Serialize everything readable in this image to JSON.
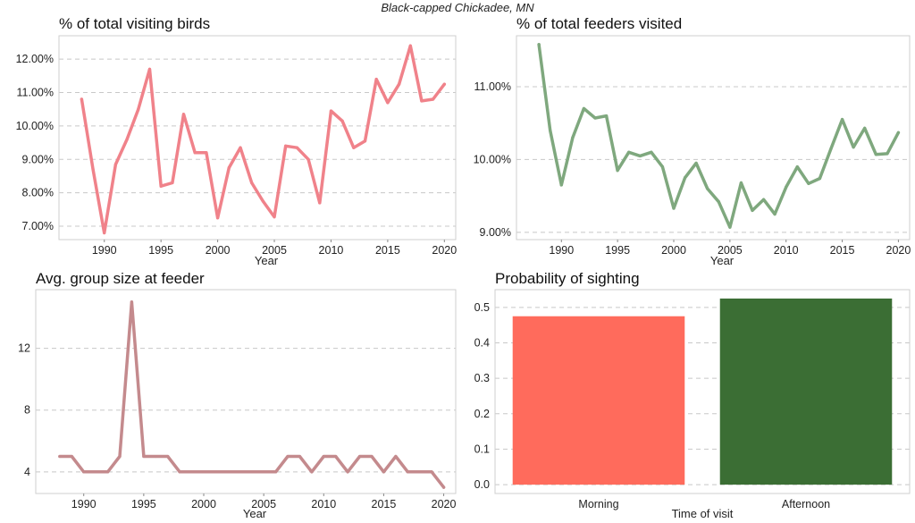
{
  "figure": {
    "suptitle": "Black-capped Chickadee, MN"
  },
  "colors": {
    "visiting": "#f0828a",
    "feeders": "#7fa87e",
    "group": "#c48a8d",
    "morning": "#ff6b5c",
    "afternoon": "#3b6e34"
  },
  "chart_data": [
    {
      "id": "visiting",
      "type": "line",
      "title": "% of total visiting birds",
      "xlabel": "Year",
      "ylabel": "",
      "xlim": [
        1986,
        2021
      ],
      "ylim": [
        6.6,
        12.7
      ],
      "xticks": [
        1990,
        1995,
        2000,
        2005,
        2010,
        2015,
        2020
      ],
      "yticks": [
        7,
        8,
        9,
        10,
        11,
        12
      ],
      "ytick_labels": [
        "7.00%",
        "8.00%",
        "9.00%",
        "10.00%",
        "11.00%",
        "12.00%"
      ],
      "grid": "horizontal-dashed",
      "color_key": "visiting",
      "x": [
        1988,
        1989,
        1990,
        1991,
        1992,
        1993,
        1994,
        1995,
        1996,
        1997,
        1998,
        1999,
        2000,
        2001,
        2002,
        2003,
        2004,
        2005,
        2006,
        2007,
        2008,
        2009,
        2010,
        2011,
        2012,
        2013,
        2014,
        2015,
        2016,
        2017,
        2018,
        2019,
        2020
      ],
      "y": [
        10.8,
        8.7,
        6.8,
        8.85,
        9.6,
        10.5,
        11.7,
        8.2,
        8.3,
        10.35,
        9.2,
        9.2,
        7.25,
        8.75,
        9.35,
        8.3,
        7.75,
        7.28,
        9.4,
        9.35,
        9.0,
        7.7,
        10.45,
        10.15,
        9.35,
        9.55,
        11.4,
        10.7,
        11.25,
        12.4,
        10.75,
        10.8,
        11.25
      ]
    },
    {
      "id": "feeders",
      "type": "line",
      "title": "% of total feeders visited",
      "xlabel": "Year",
      "ylabel": "",
      "xlim": [
        1986,
        2021
      ],
      "ylim": [
        8.9,
        11.7
      ],
      "xticks": [
        1990,
        1995,
        2000,
        2005,
        2010,
        2015,
        2020
      ],
      "yticks": [
        9,
        10,
        11
      ],
      "ytick_labels": [
        "9.00%",
        "10.00%",
        "11.00%"
      ],
      "grid": "horizontal-dashed",
      "color_key": "feeders",
      "x": [
        1988,
        1989,
        1990,
        1991,
        1992,
        1993,
        1994,
        1995,
        1996,
        1997,
        1998,
        1999,
        2000,
        2001,
        2002,
        2003,
        2004,
        2005,
        2006,
        2007,
        2008,
        2009,
        2010,
        2011,
        2012,
        2013,
        2014,
        2015,
        2016,
        2017,
        2018,
        2019,
        2020
      ],
      "y": [
        11.58,
        10.4,
        9.65,
        10.3,
        10.7,
        10.57,
        10.6,
        9.85,
        10.1,
        10.05,
        10.1,
        9.9,
        9.33,
        9.75,
        9.95,
        9.6,
        9.42,
        9.07,
        9.68,
        9.3,
        9.45,
        9.25,
        9.62,
        9.9,
        9.67,
        9.74,
        10.15,
        10.55,
        10.17,
        10.43,
        10.07,
        10.08,
        10.37
      ]
    },
    {
      "id": "group",
      "type": "line",
      "title": "Avg. group size at feeder",
      "xlabel": "Year",
      "ylabel": "",
      "xlim": [
        1986,
        2021
      ],
      "ylim": [
        2.6,
        15.8
      ],
      "xticks": [
        1990,
        1995,
        2000,
        2005,
        2010,
        2015,
        2020
      ],
      "yticks": [
        4,
        8,
        12
      ],
      "ytick_labels": [
        "4",
        "8",
        "12"
      ],
      "grid": "horizontal-dashed",
      "color_key": "group",
      "x": [
        1988,
        1989,
        1990,
        1991,
        1992,
        1993,
        1994,
        1995,
        1996,
        1997,
        1998,
        1999,
        2000,
        2001,
        2002,
        2003,
        2004,
        2005,
        2006,
        2007,
        2008,
        2009,
        2010,
        2011,
        2012,
        2013,
        2014,
        2015,
        2016,
        2017,
        2018,
        2019,
        2020
      ],
      "y": [
        5,
        5,
        4,
        4,
        4,
        5,
        15,
        5,
        5,
        5,
        4,
        4,
        4,
        4,
        4,
        4,
        4,
        4,
        4,
        5,
        5,
        4,
        5,
        5,
        4,
        5,
        5,
        4,
        5,
        4,
        4,
        4,
        3
      ]
    },
    {
      "id": "sighting",
      "type": "bar",
      "title": "Probability of sighting",
      "xlabel": "Time of visit",
      "ylabel": "",
      "categories": [
        "Morning",
        "Afternoon"
      ],
      "values": [
        0.475,
        0.525
      ],
      "ylim": [
        -0.025,
        0.55
      ],
      "yticks": [
        0.0,
        0.1,
        0.2,
        0.3,
        0.4,
        0.5
      ],
      "ytick_labels": [
        "0.0",
        "0.1",
        "0.2",
        "0.3",
        "0.4",
        "0.5"
      ],
      "grid": "horizontal-dashed",
      "color_keys": [
        "morning",
        "afternoon"
      ]
    }
  ]
}
